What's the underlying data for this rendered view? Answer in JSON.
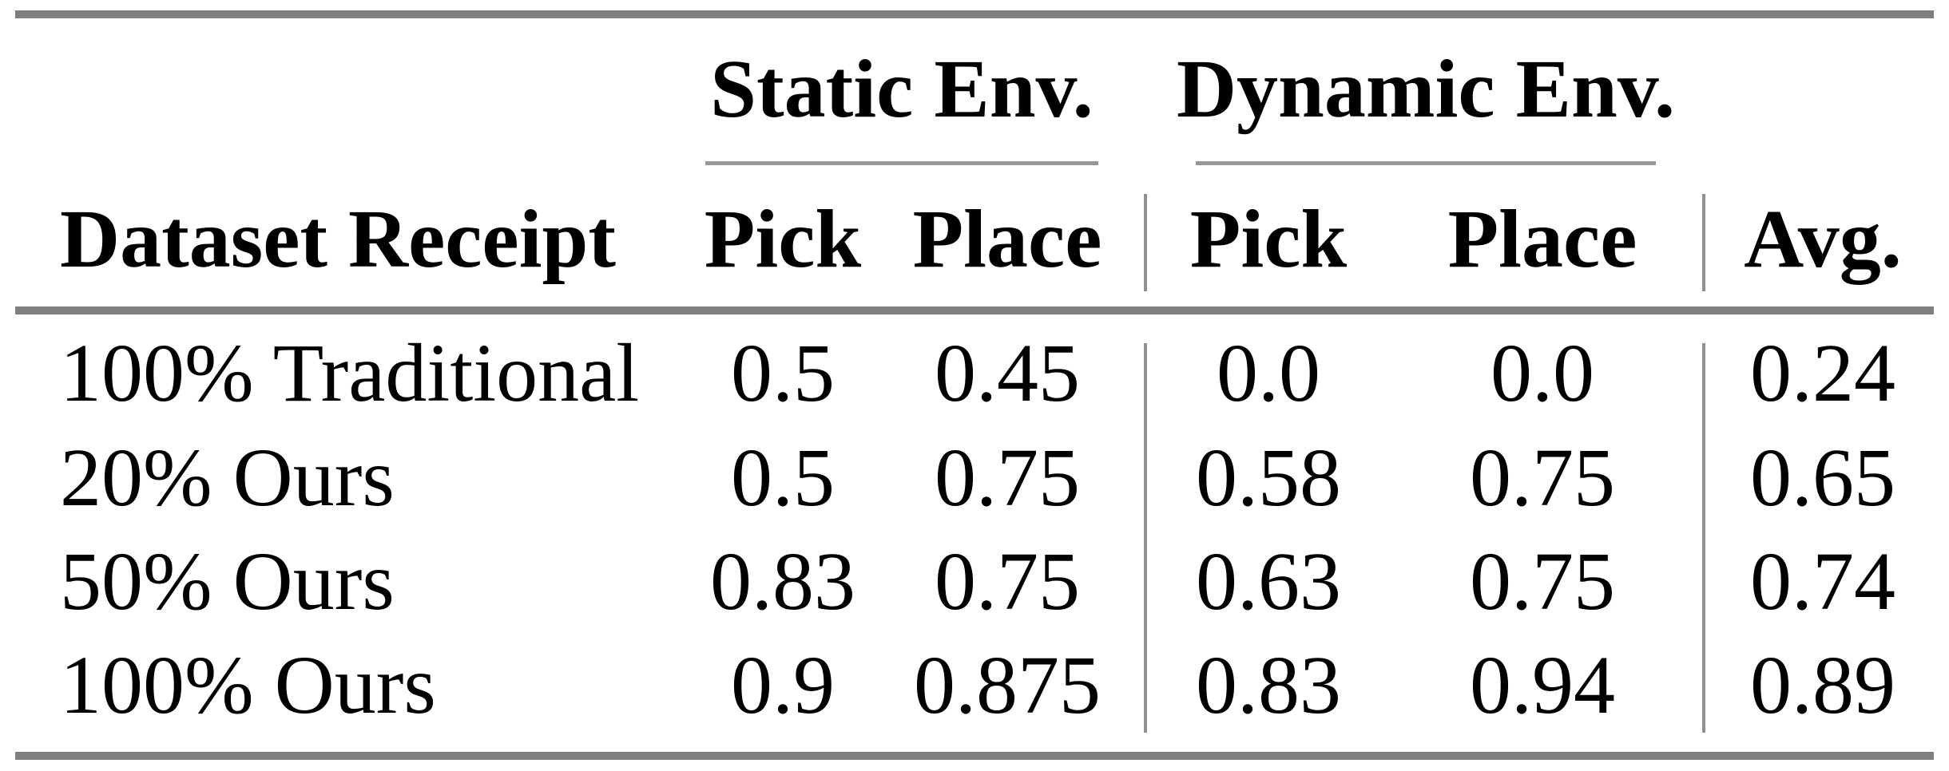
{
  "table": {
    "group_headers": [
      {
        "label": "Static Env."
      },
      {
        "label": "Dynamic Env."
      }
    ],
    "columns": [
      "Dataset Receipt",
      "Pick",
      "Place",
      "Pick",
      "Place",
      "Avg."
    ],
    "rows": [
      {
        "label": "100% Traditional",
        "values": [
          "0.5",
          "0.45",
          "0.0",
          "0.0",
          "0.24"
        ]
      },
      {
        "label": "20% Ours",
        "values": [
          "0.5",
          "0.75",
          "0.58",
          "0.75",
          "0.65"
        ]
      },
      {
        "label": "50% Ours",
        "values": [
          "0.83",
          "0.75",
          "0.63",
          "0.75",
          "0.74"
        ]
      },
      {
        "label": "100% Ours",
        "values": [
          "0.9",
          "0.875",
          "0.83",
          "0.94",
          "0.89"
        ]
      }
    ],
    "colors": {
      "thick_rule": "#7f7f7f",
      "thin_rule": "#989898",
      "vertical_rule": "#909090",
      "text": "#000000",
      "background": "#ffffff"
    }
  },
  "chart_data": {
    "type": "table",
    "title": "",
    "column_groups": [
      {
        "label": "Static Env.",
        "columns": [
          "Pick",
          "Place"
        ]
      },
      {
        "label": "Dynamic Env.",
        "columns": [
          "Pick",
          "Place"
        ]
      }
    ],
    "columns": [
      "Dataset Receipt",
      "Static Env. Pick",
      "Static Env. Place",
      "Dynamic Env. Pick",
      "Dynamic Env. Place",
      "Avg."
    ],
    "rows": [
      [
        "100% Traditional",
        0.5,
        0.45,
        0.0,
        0.0,
        0.24
      ],
      [
        "20% Ours",
        0.5,
        0.75,
        0.58,
        0.75,
        0.65
      ],
      [
        "50% Ours",
        0.83,
        0.75,
        0.63,
        0.75,
        0.74
      ],
      [
        "100% Ours",
        0.9,
        0.875,
        0.83,
        0.94,
        0.89
      ]
    ]
  }
}
